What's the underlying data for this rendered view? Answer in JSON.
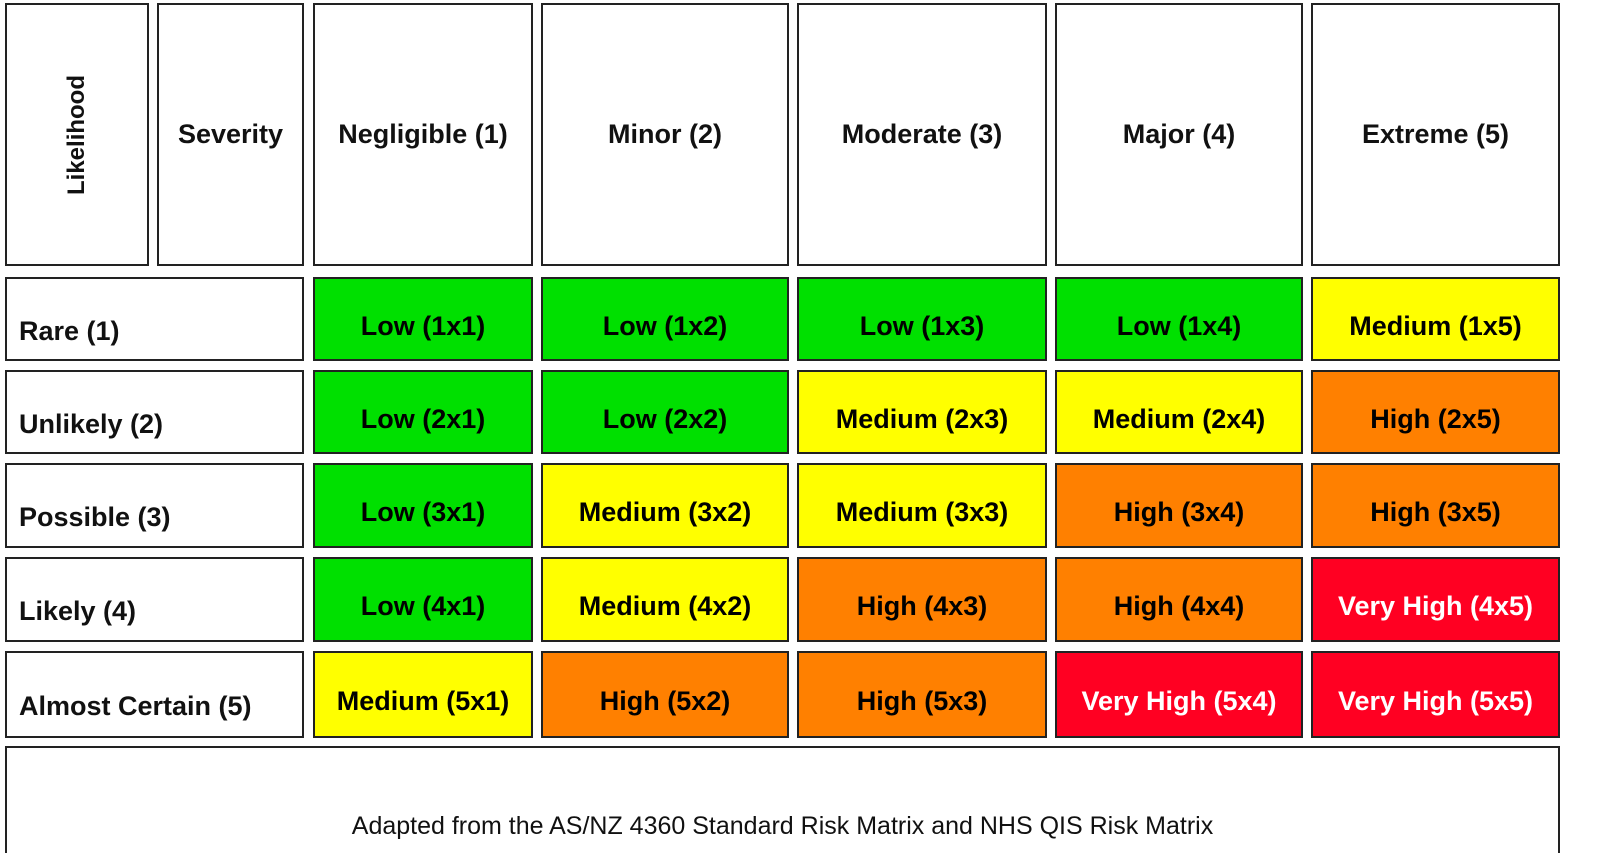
{
  "header": {
    "likelihood": "Likelihood",
    "severity": "Severity",
    "columns": [
      "Negligible (1)",
      "Minor (2)",
      "Moderate (3)",
      "Major (4)",
      "Extreme (5)"
    ]
  },
  "rows": [
    {
      "label": "Rare (1)",
      "cells": [
        {
          "text": "Low (1x1)",
          "color": "#00e000",
          "text_color": "#000000"
        },
        {
          "text": "Low (1x2)",
          "color": "#00e000",
          "text_color": "#000000"
        },
        {
          "text": "Low (1x3)",
          "color": "#00e000",
          "text_color": "#000000"
        },
        {
          "text": "Low (1x4)",
          "color": "#00e000",
          "text_color": "#000000"
        },
        {
          "text": "Medium (1x5)",
          "color": "#ffff00",
          "text_color": "#000000"
        }
      ]
    },
    {
      "label": "Unlikely (2)",
      "cells": [
        {
          "text": "Low (2x1)",
          "color": "#00e000",
          "text_color": "#000000"
        },
        {
          "text": "Low (2x2)",
          "color": "#00e000",
          "text_color": "#000000"
        },
        {
          "text": "Medium (2x3)",
          "color": "#ffff00",
          "text_color": "#000000"
        },
        {
          "text": "Medium (2x4)",
          "color": "#ffff00",
          "text_color": "#000000"
        },
        {
          "text": "High (2x5)",
          "color": "#ff8000",
          "text_color": "#000000"
        }
      ]
    },
    {
      "label": "Possible (3)",
      "cells": [
        {
          "text": "Low (3x1)",
          "color": "#00e000",
          "text_color": "#000000"
        },
        {
          "text": "Medium (3x2)",
          "color": "#ffff00",
          "text_color": "#000000"
        },
        {
          "text": "Medium (3x3)",
          "color": "#ffff00",
          "text_color": "#000000"
        },
        {
          "text": "High (3x4)",
          "color": "#ff8000",
          "text_color": "#000000"
        },
        {
          "text": "High (3x5)",
          "color": "#ff8000",
          "text_color": "#000000"
        }
      ]
    },
    {
      "label": "Likely (4)",
      "cells": [
        {
          "text": "Low (4x1)",
          "color": "#00e000",
          "text_color": "#000000"
        },
        {
          "text": "Medium (4x2)",
          "color": "#ffff00",
          "text_color": "#000000"
        },
        {
          "text": "High (4x3)",
          "color": "#ff8000",
          "text_color": "#000000"
        },
        {
          "text": "High (4x4)",
          "color": "#ff8000",
          "text_color": "#000000"
        },
        {
          "text": "Very High (4x5)",
          "color": "#ff0022",
          "text_color": "#ffffff"
        }
      ]
    },
    {
      "label": "Almost Certain (5)",
      "cells": [
        {
          "text": "Medium (5x1)",
          "color": "#ffff00",
          "text_color": "#000000"
        },
        {
          "text": "High (5x2)",
          "color": "#ff8000",
          "text_color": "#000000"
        },
        {
          "text": "High (5x3)",
          "color": "#ff8000",
          "text_color": "#000000"
        },
        {
          "text": "Very High (5x4)",
          "color": "#ff0022",
          "text_color": "#ffffff"
        },
        {
          "text": "Very High (5x5)",
          "color": "#ff0022",
          "text_color": "#ffffff"
        }
      ]
    }
  ],
  "footer": "Adapted from the AS/NZ 4360 Standard Risk Matrix and NHS QIS Risk Matrix"
}
